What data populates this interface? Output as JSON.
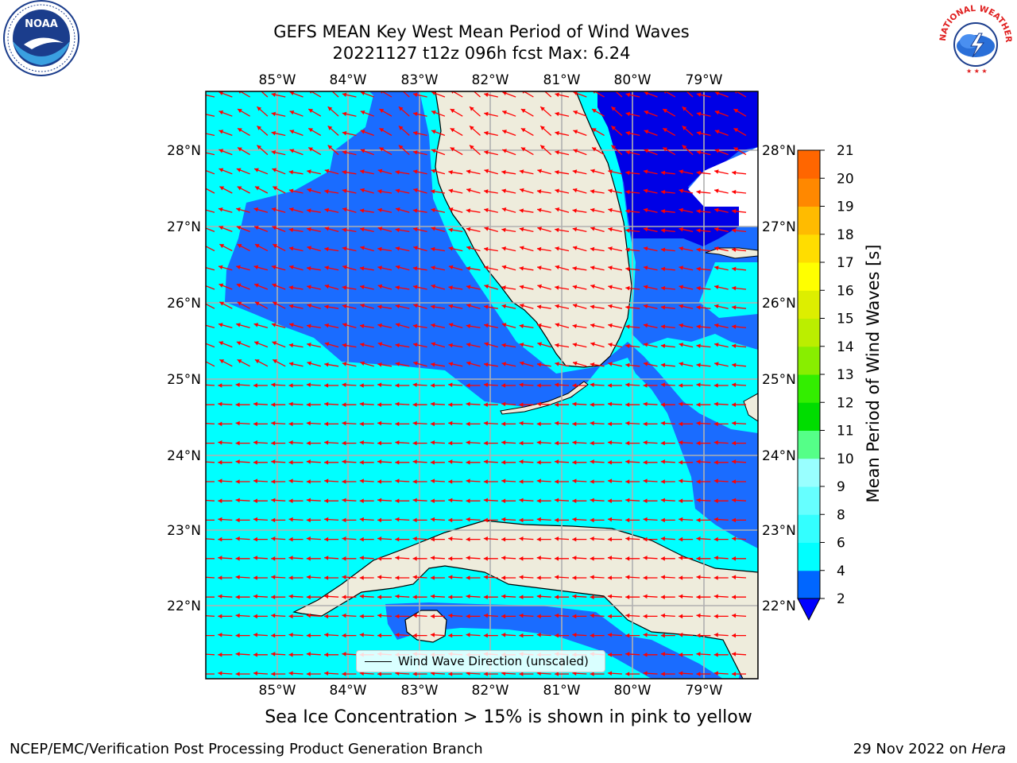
{
  "title": {
    "line1": "GEFS MEAN Key West Mean Period of Wind Waves",
    "line2": "20221127 t12z 096h fcst   Max: 6.24"
  },
  "logos": {
    "left": "NOAA",
    "right": "NATIONAL WEATHER SERVICE"
  },
  "map": {
    "lon_labels": [
      "85°W",
      "84°W",
      "83°W",
      "82°W",
      "81°W",
      "80°W",
      "79°W"
    ],
    "lat_labels": [
      "28°N",
      "27°N",
      "26°N",
      "25°N",
      "24°N",
      "23°N",
      "22°N"
    ],
    "lon_range": [
      -86.0,
      -78.2
    ],
    "lat_range": [
      21.0,
      28.8
    ],
    "grid": true,
    "vectors": "red arrows, predominantly westward / south-westward",
    "colors": {
      "ocean_low": "#0044ff",
      "ocean_mid": "#1a6cff",
      "ocean_high": "#00ffff",
      "deep_blue": "#0000e6",
      "land": "#eeecdc",
      "arrow": "#ff0000",
      "grid": "#b0b0b0"
    }
  },
  "colorbar": {
    "label": "Mean Period of Wind Waves [s]",
    "ticks": [
      "2",
      "4",
      "6",
      "8",
      "9",
      "10",
      "11",
      "12",
      "13",
      "14",
      "15",
      "16",
      "17",
      "18",
      "19",
      "20",
      "21"
    ],
    "colors": [
      "#0066ff",
      "#00ffff",
      "#33ffff",
      "#66ffff",
      "#99ffff",
      "#55ff88",
      "#00dd00",
      "#33ee00",
      "#88ee00",
      "#bbee00",
      "#ddee00",
      "#ffff00",
      "#ffdd00",
      "#ffbb00",
      "#ff8800",
      "#ff6600",
      "#ff3300",
      "#ff0000"
    ],
    "under_color": "#0000ff"
  },
  "legend": {
    "label": "Wind Wave Direction (unscaled)"
  },
  "note": "Sea Ice Concentration > 15% is shown in pink to yellow",
  "footer": {
    "left": "NCEP/EMC/Verification Post Processing Product Generation Branch",
    "date": "29 Nov 2022 on ",
    "machine": "Hera"
  }
}
